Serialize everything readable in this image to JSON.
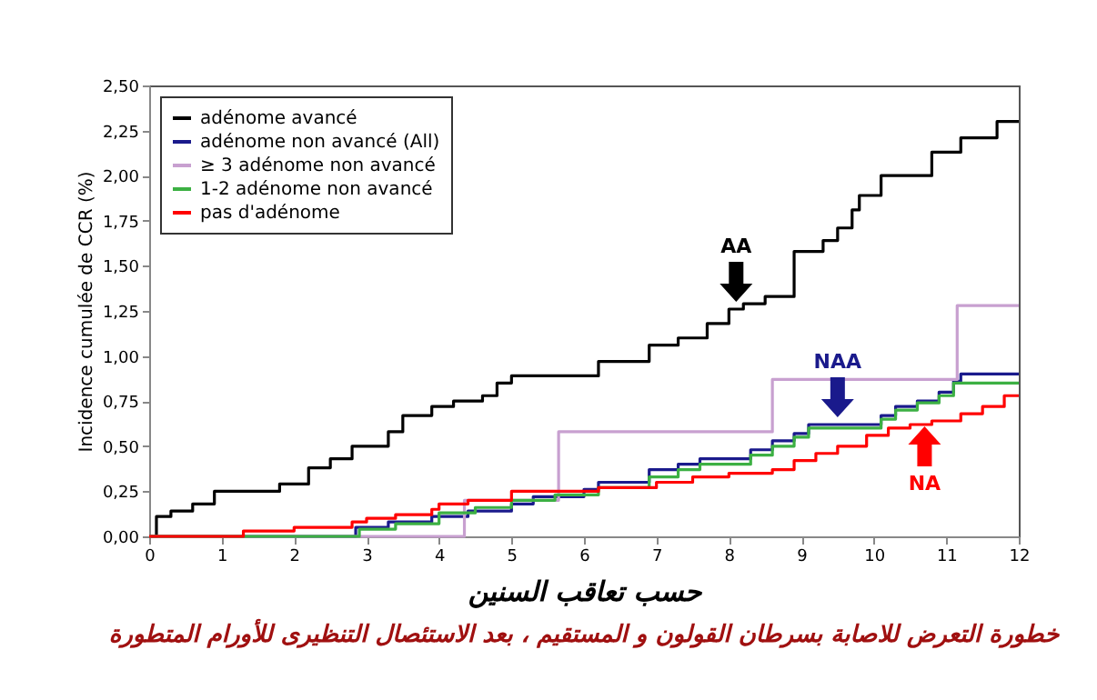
{
  "chart_data": {
    "type": "step",
    "title": "خطورة التعرض للاصابة بسرطان القولون و المستقيم ، بعد الاستئصال التنظيرى للأورام المتطورة",
    "xlabel": "حسب تعاقب السنين",
    "ylabel": "Incidence cumulée de CCR (%)",
    "xlim": [
      0,
      12
    ],
    "xticks": [
      0,
      1,
      2,
      3,
      4,
      5,
      6,
      7,
      8,
      9,
      10,
      11,
      12
    ],
    "ylim": [
      0,
      2.5
    ],
    "yticks": [
      {
        "value": 0,
        "label": "0,00"
      },
      {
        "value": 0.25,
        "label": "0,25"
      },
      {
        "value": 0.5,
        "label": "0,50"
      },
      {
        "value": 0.75,
        "label": "0,75"
      },
      {
        "value": 1,
        "label": "1,00"
      },
      {
        "value": 1.25,
        "label": "1,25"
      },
      {
        "value": 1.5,
        "label": "1,50"
      },
      {
        "value": 1.75,
        "label": "1,75"
      },
      {
        "value": 2,
        "label": "2,00"
      },
      {
        "value": 2.25,
        "label": "2,25"
      },
      {
        "value": 2.5,
        "label": "2,50"
      }
    ],
    "legend": "top left",
    "grid": false,
    "series": [
      {
        "name": "adénome avancé",
        "color": "#000000",
        "x": [
          0,
          0.1,
          0.3,
          0.6,
          0.9,
          1.8,
          2.2,
          2.5,
          2.8,
          3.3,
          3.5,
          3.9,
          4.2,
          4.6,
          4.8,
          5.0,
          6.2,
          6.9,
          7.3,
          7.7,
          8.0,
          8.2,
          8.5,
          8.9,
          9.3,
          9.5,
          9.7,
          9.8,
          10.1,
          10.8,
          11.2,
          11.7,
          12
        ],
        "values": [
          0,
          0.11,
          0.14,
          0.18,
          0.25,
          0.29,
          0.38,
          0.43,
          0.5,
          0.58,
          0.67,
          0.72,
          0.75,
          0.78,
          0.85,
          0.89,
          0.97,
          1.06,
          1.1,
          1.18,
          1.26,
          1.29,
          1.33,
          1.58,
          1.64,
          1.71,
          1.81,
          1.89,
          2.0,
          2.13,
          2.21,
          2.3,
          2.3
        ]
      },
      {
        "name": "adénome non avancé (All)",
        "color": "#1a1a8c",
        "x": [
          0,
          2.85,
          3.3,
          3.9,
          4.4,
          5.0,
          5.3,
          6.0,
          6.2,
          6.9,
          7.3,
          7.6,
          8.3,
          8.6,
          8.9,
          9.1,
          10.1,
          10.3,
          10.6,
          10.9,
          11.1,
          11.2,
          12
        ],
        "values": [
          0,
          0.05,
          0.08,
          0.11,
          0.14,
          0.18,
          0.22,
          0.26,
          0.3,
          0.37,
          0.4,
          0.43,
          0.48,
          0.53,
          0.57,
          0.62,
          0.67,
          0.72,
          0.75,
          0.8,
          0.86,
          0.9,
          0.9
        ]
      },
      {
        "name": "≥ 3 adénome non avancé",
        "color": "#c8a0d0",
        "x": [
          0,
          4.35,
          5.65,
          8.6,
          11.15,
          12
        ],
        "values": [
          0,
          0.2,
          0.58,
          0.87,
          1.28,
          1.28
        ]
      },
      {
        "name": "1-2 adénome non avancé",
        "color": "#3cb043",
        "x": [
          0,
          2.9,
          3.4,
          4.0,
          4.5,
          5.0,
          5.6,
          6.2,
          6.9,
          7.3,
          7.6,
          8.3,
          8.6,
          8.9,
          9.1,
          10.1,
          10.3,
          10.6,
          10.9,
          11.1,
          12
        ],
        "values": [
          0,
          0.04,
          0.07,
          0.13,
          0.16,
          0.2,
          0.23,
          0.27,
          0.33,
          0.37,
          0.4,
          0.45,
          0.5,
          0.55,
          0.6,
          0.65,
          0.7,
          0.74,
          0.78,
          0.85,
          0.85
        ]
      },
      {
        "name": "pas d'adénome",
        "color": "#ff0000",
        "x": [
          0,
          1.3,
          2.0,
          2.8,
          3.0,
          3.4,
          3.9,
          4.0,
          4.4,
          5.0,
          6.2,
          7.0,
          7.5,
          8.0,
          8.6,
          8.9,
          9.2,
          9.5,
          9.9,
          10.2,
          10.5,
          10.8,
          11.2,
          11.5,
          11.8,
          12
        ],
        "values": [
          0,
          0.03,
          0.05,
          0.08,
          0.1,
          0.12,
          0.15,
          0.18,
          0.2,
          0.25,
          0.27,
          0.3,
          0.33,
          0.35,
          0.37,
          0.42,
          0.46,
          0.5,
          0.56,
          0.6,
          0.62,
          0.64,
          0.68,
          0.72,
          0.78,
          0.78
        ]
      }
    ],
    "annotations": [
      {
        "text": "AA",
        "x": 8.1,
        "y": 1.28
      },
      {
        "text": "NAA",
        "x": 9.5,
        "y": 0.64
      },
      {
        "text": "NA",
        "x": 10.7,
        "y": 0.63
      }
    ]
  }
}
